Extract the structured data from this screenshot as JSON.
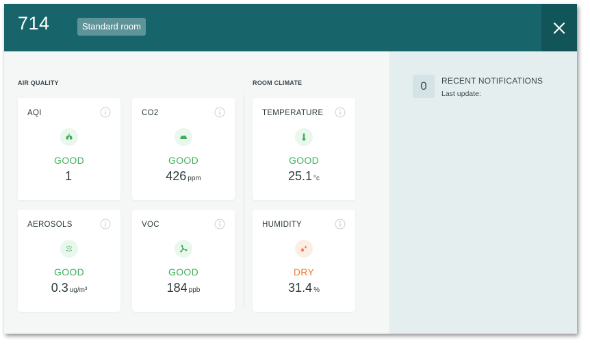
{
  "header": {
    "room_number": "714",
    "room_type": "Standard room"
  },
  "sections": {
    "air_quality": "AIR QUALITY",
    "room_climate": "ROOM CLIMATE"
  },
  "cards": {
    "aqi": {
      "title": "AQI",
      "status": "GOOD",
      "value": "1",
      "unit": "",
      "icon": "lungs-icon"
    },
    "co2": {
      "title": "CO2",
      "status": "GOOD",
      "value": "426",
      "unit": "ppm",
      "icon": "cloud-icon"
    },
    "aerosols": {
      "title": "AEROSOLS",
      "status": "GOOD",
      "value": "0.3",
      "unit": "ug/m³",
      "icon": "particles-icon"
    },
    "voc": {
      "title": "VOC",
      "status": "GOOD",
      "value": "184",
      "unit": "ppb",
      "icon": "molecule-icon"
    },
    "temperature": {
      "title": "TEMPERATURE",
      "status": "GOOD",
      "value": "25.1",
      "unit": "°c",
      "icon": "thermometer-icon"
    },
    "humidity": {
      "title": "HUMIDITY",
      "status": "DRY",
      "value": "31.4",
      "unit": "%",
      "icon": "droplets-icon"
    }
  },
  "notifications": {
    "count": "0",
    "title": "RECENT NOTIFICATIONS",
    "last_update": "Last update:"
  },
  "colors": {
    "header": "#17656b",
    "close_button": "#125559",
    "good": "#3fae58",
    "dry": "#f07a3a",
    "side_panel": "#e4eeef"
  }
}
